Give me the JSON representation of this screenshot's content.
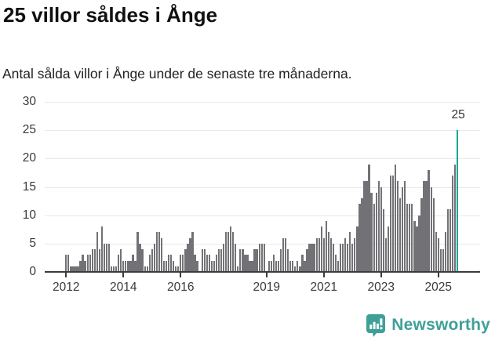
{
  "header": {
    "title": "25 villor såldes i Ånge",
    "subtitle": "Antal sålda villor i Ånge under de senaste tre månaderna."
  },
  "chart_data": {
    "type": "bar",
    "title": "25 villor såldes i Ånge",
    "xlabel": "",
    "ylabel": "",
    "x_unit": "month",
    "x_start": "2012-01",
    "x_end": "2025-09",
    "ylim": [
      0,
      30
    ],
    "yticks": [
      0,
      5,
      10,
      15,
      20,
      25,
      30
    ],
    "grid": "horizontal",
    "legend": "none",
    "xticks": [
      {
        "label": "2012",
        "month_index": 0
      },
      {
        "label": "2014",
        "month_index": 24
      },
      {
        "label": "2016",
        "month_index": 48
      },
      {
        "label": "2019",
        "month_index": 84
      },
      {
        "label": "2021",
        "month_index": 108
      },
      {
        "label": "2023",
        "month_index": 132
      },
      {
        "label": "2025",
        "month_index": 156
      }
    ],
    "values": [
      3,
      3,
      1,
      1,
      1,
      1,
      2,
      3,
      2,
      3,
      3,
      4,
      4,
      7,
      4,
      8,
      5,
      5,
      5,
      1,
      1,
      1,
      3,
      4,
      2,
      2,
      2,
      2,
      3,
      2,
      7,
      5,
      4,
      1,
      1,
      3,
      4,
      5,
      7,
      7,
      6,
      2,
      2,
      3,
      3,
      2,
      1,
      1,
      3,
      3,
      4,
      5,
      6,
      7,
      3,
      2,
      0,
      4,
      4,
      3,
      3,
      2,
      2,
      3,
      4,
      4,
      5,
      7,
      7,
      8,
      7,
      5,
      1,
      4,
      4,
      3,
      3,
      2,
      2,
      4,
      4,
      5,
      5,
      5,
      0,
      2,
      2,
      3,
      2,
      2,
      4,
      6,
      6,
      4,
      2,
      2,
      1,
      2,
      1,
      3,
      2,
      4,
      5,
      5,
      5,
      6,
      6,
      8,
      6,
      9,
      7,
      6,
      5,
      3,
      2,
      5,
      5,
      6,
      5,
      7,
      5,
      6,
      8,
      12,
      13,
      16,
      16,
      19,
      14,
      12,
      14,
      16,
      15,
      11,
      6,
      8,
      17,
      17,
      19,
      16,
      13,
      15,
      16,
      12,
      12,
      12,
      9,
      8,
      10,
      13,
      16,
      16,
      18,
      15,
      13,
      7,
      6,
      4,
      4,
      7,
      11,
      11,
      17,
      19,
      25
    ],
    "highlight_last_bar": true,
    "annotation": {
      "text": "25",
      "month_index": 164
    }
  },
  "colors": {
    "bar": "#727276",
    "highlight": "#00a59b",
    "gridline": "#e9e9e9",
    "axis": "#3b3b3b",
    "text": "#3a3a3a",
    "brand": "#3fa099"
  },
  "footer": {
    "brand": "Newsworthy"
  }
}
